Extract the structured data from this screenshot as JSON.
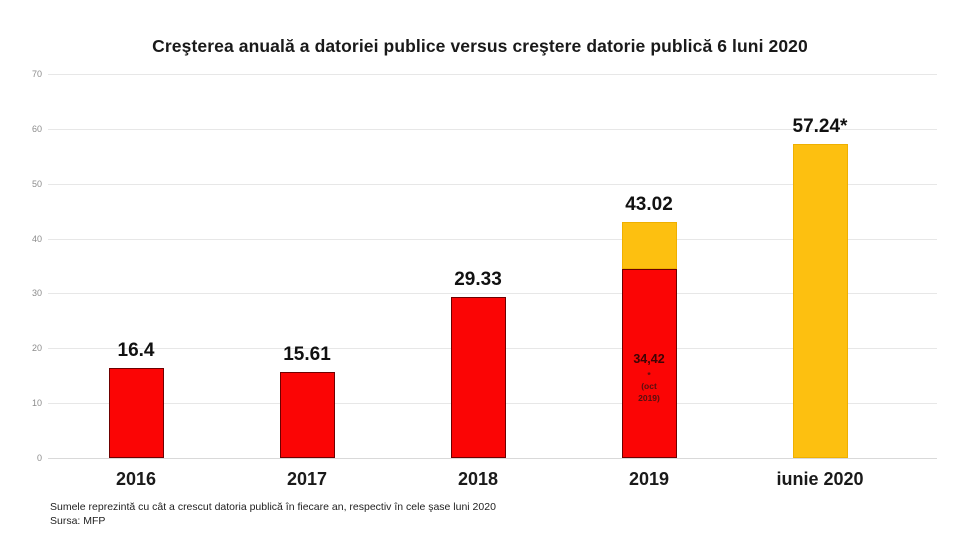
{
  "title": "Creşterea anuală a datoriei publice versus creştere datorie publică 6 luni 2020",
  "footnote": {
    "line1": "Sumele reprezintă cu cât a crescut datoria publică în fiecare an, respectiv în cele şase luni 2020",
    "line2": "Sursa: MFP"
  },
  "colors": {
    "red": "#fb0505",
    "red_border": "#6e0000",
    "yellow": "#fdc010",
    "yellow_border": "#efb000",
    "gridline": "#e7e7e7",
    "tick_label": "#8c8c8c"
  },
  "chart_data": {
    "type": "bar",
    "stacked": true,
    "title": "Creşterea anuală a datoriei publice versus creştere datorie publică 6 luni 2020",
    "categories": [
      "2016",
      "2017",
      "2018",
      "2019",
      "iunie 2020"
    ],
    "series": [
      {
        "color": "red",
        "values": [
          16.4,
          15.61,
          29.33,
          34.42,
          0
        ]
      },
      {
        "color": "yellow",
        "values": [
          0,
          0,
          0,
          8.6,
          57.24
        ]
      }
    ],
    "totals": [
      16.4,
      15.61,
      29.33,
      43.02,
      57.24
    ],
    "bar_labels": [
      "16.4",
      "15.61",
      "29.33",
      "43.02",
      "57.24*"
    ],
    "inner_label": {
      "category": "2019",
      "lines": [
        "34,42",
        "*",
        "(oct",
        "2019)"
      ]
    },
    "xlabel": "",
    "ylabel": "",
    "ylim": [
      0,
      70
    ],
    "yticks": [
      0,
      10,
      20,
      30,
      40,
      50,
      60,
      70
    ],
    "grid": true,
    "legend": "none"
  }
}
